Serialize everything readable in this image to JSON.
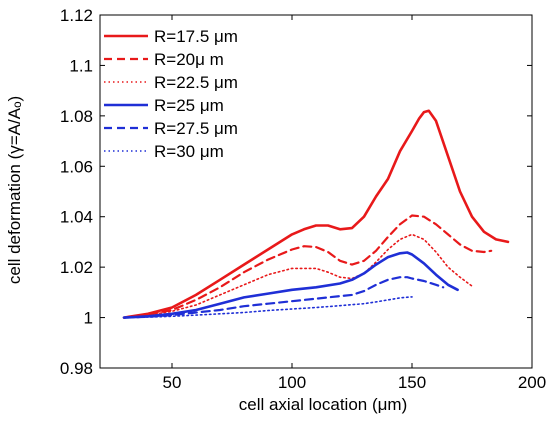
{
  "chart_data": {
    "type": "line",
    "title": "",
    "xlabel": "cell axial location (μm)",
    "ylabel": "cell deformation (γ=A/Aₒ)",
    "xlim": [
      20,
      200
    ],
    "ylim": [
      0.98,
      1.12
    ],
    "xticks": [
      "50",
      "100",
      "150",
      "200"
    ],
    "xtick_values": [
      50,
      100,
      150,
      200
    ],
    "yticks": [
      "0.98",
      "1",
      "1.02",
      "1.04",
      "1.06",
      "1.08",
      "1.1",
      "1.12"
    ],
    "ytick_values": [
      0.98,
      1.0,
      1.02,
      1.04,
      1.06,
      1.08,
      1.1,
      1.12
    ],
    "grid": false,
    "legend_position": "top-left",
    "series": [
      {
        "name": "R=17.5 μm",
        "color": "#e8191a",
        "style": "solid",
        "x": [
          30,
          40,
          50,
          60,
          70,
          80,
          90,
          100,
          105,
          110,
          115,
          120,
          125,
          130,
          135,
          140,
          145,
          150,
          153,
          155,
          157,
          160,
          165,
          170,
          175,
          180,
          185,
          190
        ],
        "y": [
          1.0,
          1.0015,
          1.004,
          1.009,
          1.015,
          1.021,
          1.027,
          1.033,
          1.035,
          1.0365,
          1.0365,
          1.035,
          1.0355,
          1.04,
          1.048,
          1.055,
          1.066,
          1.074,
          1.079,
          1.0815,
          1.082,
          1.078,
          1.064,
          1.05,
          1.04,
          1.034,
          1.031,
          1.03
        ]
      },
      {
        "name": "R=20μ m",
        "color": "#e8191a",
        "style": "dashed",
        "x": [
          30,
          40,
          50,
          60,
          70,
          80,
          90,
          100,
          105,
          110,
          115,
          120,
          125,
          130,
          135,
          140,
          145,
          150,
          155,
          160,
          165,
          170,
          175,
          180,
          183
        ],
        "y": [
          1.0,
          1.0012,
          1.003,
          1.007,
          1.012,
          1.018,
          1.023,
          1.027,
          1.0283,
          1.028,
          1.026,
          1.0225,
          1.021,
          1.0225,
          1.0265,
          1.032,
          1.037,
          1.0405,
          1.04,
          1.037,
          1.033,
          1.029,
          1.0265,
          1.026,
          1.0265
        ]
      },
      {
        "name": "R=22.5 μm",
        "color": "#e8191a",
        "style": "dotted",
        "x": [
          30,
          40,
          50,
          60,
          70,
          80,
          90,
          100,
          110,
          115,
          120,
          125,
          130,
          135,
          140,
          145,
          150,
          155,
          160,
          165,
          170,
          175
        ],
        "y": [
          1.0,
          1.001,
          1.0025,
          1.005,
          1.009,
          1.013,
          1.017,
          1.0195,
          1.0195,
          1.018,
          1.016,
          1.0155,
          1.0175,
          1.022,
          1.027,
          1.031,
          1.033,
          1.031,
          1.026,
          1.02,
          1.016,
          1.0125
        ]
      },
      {
        "name": "R=25 μm",
        "color": "#1f2fd6",
        "style": "solid",
        "x": [
          30,
          40,
          50,
          60,
          70,
          80,
          90,
          100,
          110,
          120,
          125,
          130,
          135,
          140,
          145,
          148,
          150,
          155,
          160,
          165,
          169
        ],
        "y": [
          1.0,
          1.0005,
          1.0015,
          1.003,
          1.0055,
          1.008,
          1.0095,
          1.011,
          1.012,
          1.0135,
          1.015,
          1.0175,
          1.021,
          1.024,
          1.0255,
          1.0258,
          1.025,
          1.0215,
          1.017,
          1.013,
          1.011
        ]
      },
      {
        "name": "R=27.5 μm",
        "color": "#1f2fd6",
        "style": "dashed",
        "x": [
          30,
          40,
          50,
          60,
          70,
          80,
          90,
          100,
          110,
          120,
          125,
          130,
          135,
          140,
          145,
          148,
          150,
          155,
          160,
          163
        ],
        "y": [
          1.0,
          1.0003,
          1.001,
          1.002,
          1.003,
          1.0045,
          1.0055,
          1.0065,
          1.0075,
          1.0085,
          1.009,
          1.0105,
          1.013,
          1.015,
          1.016,
          1.016,
          1.0155,
          1.0145,
          1.013,
          1.012
        ]
      },
      {
        "name": "R=30 μm",
        "color": "#1f2fd6",
        "style": "dotted",
        "x": [
          30,
          40,
          50,
          60,
          70,
          80,
          90,
          100,
          110,
          120,
          130,
          135,
          140,
          145,
          150
        ],
        "y": [
          1.0,
          1.0002,
          1.0005,
          1.001,
          1.0015,
          1.002,
          1.0028,
          1.0034,
          1.004,
          1.0047,
          1.0055,
          1.0062,
          1.007,
          1.0078,
          1.0082
        ]
      }
    ]
  }
}
